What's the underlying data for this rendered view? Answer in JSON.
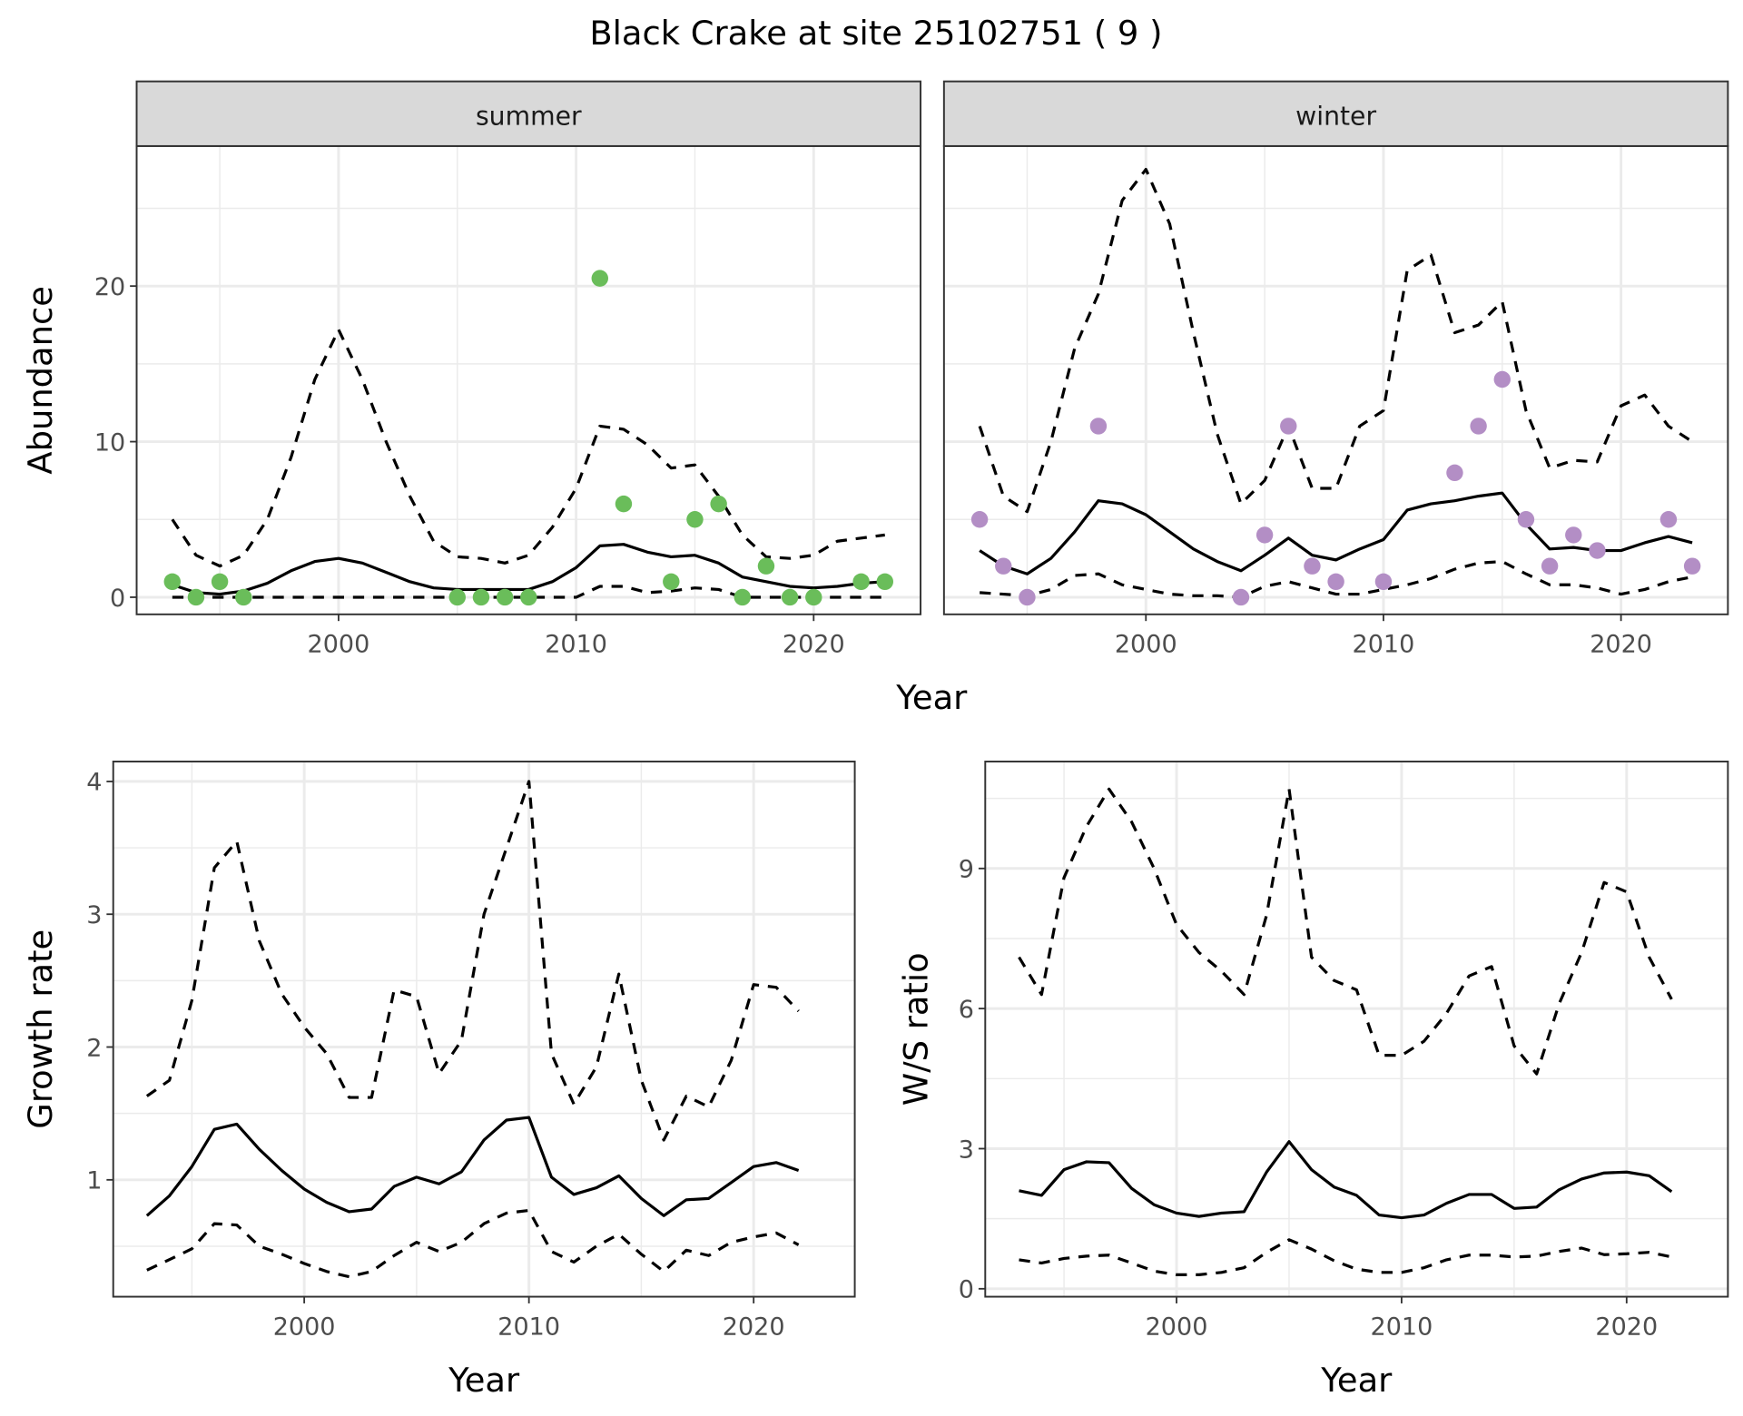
{
  "title": "Black Crake at site 25102751 ( 9 )",
  "colors": {
    "summer_points": "#6ABD5A",
    "winter_points": "#B38EC5",
    "lines": "#000000",
    "strip_bg": "#D9D9D9",
    "grid": "#EBEBEB"
  },
  "chart_data": [
    {
      "type": "line",
      "panel": "summer",
      "strip_label": "summer",
      "xlabel": "Year",
      "ylabel": "Abundance",
      "xlim": [
        1991.5,
        2024.5
      ],
      "ylim": [
        -1.1,
        29
      ],
      "x_ticks": [
        "2000",
        "2010",
        "2020"
      ],
      "y_ticks": [
        "0",
        "10",
        "20"
      ],
      "grid": true,
      "x": [
        1993,
        1994,
        1995,
        1996,
        1997,
        1998,
        1999,
        2000,
        2001,
        2002,
        2003,
        2004,
        2005,
        2006,
        2007,
        2008,
        2009,
        2010,
        2011,
        2012,
        2013,
        2014,
        2015,
        2016,
        2017,
        2018,
        2019,
        2020,
        2021,
        2022,
        2023
      ],
      "mean": [
        0.8,
        0.3,
        0.2,
        0.4,
        0.9,
        1.7,
        2.3,
        2.5,
        2.2,
        1.6,
        1.0,
        0.6,
        0.5,
        0.5,
        0.5,
        0.5,
        1.0,
        1.9,
        3.3,
        3.4,
        2.9,
        2.6,
        2.7,
        2.2,
        1.3,
        1.0,
        0.7,
        0.6,
        0.7,
        0.9,
        1.0
      ],
      "upper": [
        5.0,
        2.7,
        2.0,
        2.7,
        5.0,
        9.0,
        14.0,
        17.2,
        14.0,
        10.0,
        6.5,
        3.6,
        2.6,
        2.5,
        2.2,
        2.7,
        4.5,
        7.0,
        11.0,
        10.8,
        9.8,
        8.3,
        8.5,
        6.5,
        4.0,
        2.6,
        2.5,
        2.7,
        3.6,
        3.8,
        4.0
      ],
      "lower": [
        0,
        0,
        0,
        0,
        0,
        0,
        0,
        0,
        0,
        0,
        0,
        0,
        0,
        0,
        0,
        0,
        0,
        0,
        0.7,
        0.7,
        0.3,
        0.4,
        0.6,
        0.5,
        0,
        0,
        0,
        0,
        0,
        0,
        0
      ],
      "points": {
        "x": [
          1993,
          1994,
          1995,
          1996,
          2005,
          2006,
          2007,
          2008,
          2011,
          2012,
          2014,
          2015,
          2016,
          2017,
          2018,
          2019,
          2020,
          2022,
          2023
        ],
        "y": [
          1,
          0,
          1,
          0,
          0,
          0,
          0,
          0,
          20.5,
          6,
          1,
          5,
          6,
          0,
          2,
          0,
          0,
          1,
          1
        ]
      }
    },
    {
      "type": "line",
      "panel": "winter",
      "strip_label": "winter",
      "xlabel": "Year",
      "ylabel": "Abundance",
      "xlim": [
        1991.5,
        2024.5
      ],
      "ylim": [
        -1.1,
        29
      ],
      "x_ticks": [
        "2000",
        "2010",
        "2020"
      ],
      "grid": true,
      "x": [
        1993,
        1994,
        1995,
        1996,
        1997,
        1998,
        1999,
        2000,
        2001,
        2002,
        2003,
        2004,
        2005,
        2006,
        2007,
        2008,
        2009,
        2010,
        2011,
        2012,
        2013,
        2014,
        2015,
        2016,
        2017,
        2018,
        2019,
        2020,
        2021,
        2022,
        2023
      ],
      "mean": [
        3.0,
        2.0,
        1.5,
        2.5,
        4.2,
        6.2,
        6.0,
        5.3,
        4.2,
        3.1,
        2.3,
        1.7,
        2.7,
        3.8,
        2.7,
        2.4,
        3.1,
        3.7,
        5.6,
        6.0,
        6.2,
        6.5,
        6.7,
        4.7,
        3.1,
        3.2,
        3.0,
        3.0,
        3.5,
        3.9,
        3.5
      ],
      "upper": [
        11.0,
        6.5,
        5.5,
        10.0,
        16.0,
        19.5,
        25.5,
        27.5,
        24.0,
        17.0,
        10.5,
        6.0,
        7.5,
        11.0,
        7.0,
        7.0,
        11.0,
        12.0,
        21.0,
        22.0,
        17.0,
        17.5,
        19.0,
        12.0,
        8.3,
        8.8,
        8.7,
        12.3,
        13.0,
        11.0,
        10.0
      ],
      "lower": [
        0.3,
        0.2,
        0.1,
        0.5,
        1.4,
        1.5,
        0.8,
        0.5,
        0.2,
        0.1,
        0.1,
        0,
        0.7,
        1.0,
        0.6,
        0.2,
        0.2,
        0.5,
        0.8,
        1.2,
        1.8,
        2.2,
        2.3,
        1.5,
        0.8,
        0.8,
        0.6,
        0.2,
        0.5,
        1.0,
        1.3
      ],
      "points": {
        "x": [
          1993,
          1994,
          1995,
          1998,
          2004,
          2005,
          2006,
          2007,
          2008,
          2010,
          2013,
          2014,
          2015,
          2016,
          2017,
          2018,
          2019,
          2022,
          2023
        ],
        "y": [
          5,
          2,
          0,
          11,
          0,
          4,
          11,
          2,
          1,
          1,
          8,
          11,
          14,
          5,
          2,
          4,
          3,
          5,
          2
        ]
      }
    },
    {
      "type": "line",
      "panel": "growth",
      "xlabel": "Year",
      "ylabel": "Growth rate",
      "xlim": [
        1991.5,
        2024.5
      ],
      "ylim": [
        0.12,
        4.15
      ],
      "x_ticks": [
        "2000",
        "2010",
        "2020"
      ],
      "y_ticks": [
        "1",
        "2",
        "3",
        "4"
      ],
      "grid": true,
      "x": [
        1993,
        1994,
        1995,
        1996,
        1997,
        1998,
        1999,
        2000,
        2001,
        2002,
        2003,
        2004,
        2005,
        2006,
        2007,
        2008,
        2009,
        2010,
        2011,
        2012,
        2013,
        2014,
        2015,
        2016,
        2017,
        2018,
        2019,
        2020,
        2021,
        2022
      ],
      "mean": [
        0.73,
        0.88,
        1.1,
        1.38,
        1.42,
        1.23,
        1.07,
        0.93,
        0.83,
        0.76,
        0.78,
        0.95,
        1.02,
        0.97,
        1.06,
        1.3,
        1.45,
        1.47,
        1.02,
        0.89,
        0.94,
        1.03,
        0.86,
        0.73,
        0.85,
        0.86,
        0.98,
        1.1,
        1.13,
        1.07
      ],
      "upper": [
        1.63,
        1.75,
        2.35,
        3.35,
        3.55,
        2.8,
        2.4,
        2.15,
        1.95,
        1.62,
        1.62,
        2.43,
        2.38,
        1.8,
        2.05,
        3.0,
        3.5,
        4.0,
        1.95,
        1.57,
        1.85,
        2.55,
        1.75,
        1.3,
        1.63,
        1.55,
        1.9,
        2.47,
        2.45,
        2.27
      ],
      "lower": [
        0.32,
        0.4,
        0.48,
        0.67,
        0.66,
        0.5,
        0.44,
        0.37,
        0.31,
        0.27,
        0.31,
        0.43,
        0.53,
        0.46,
        0.53,
        0.67,
        0.75,
        0.77,
        0.46,
        0.38,
        0.5,
        0.59,
        0.44,
        0.31,
        0.47,
        0.43,
        0.53,
        0.57,
        0.6,
        0.51
      ]
    },
    {
      "type": "line",
      "panel": "ratio",
      "xlabel": "Year",
      "ylabel": "W/S ratio",
      "xlim": [
        1991.5,
        2024.5
      ],
      "ylim": [
        -0.17,
        11.29
      ],
      "x_ticks": [
        "2000",
        "2010",
        "2020"
      ],
      "y_ticks": [
        "0",
        "3",
        "6",
        "9"
      ],
      "grid": true,
      "x": [
        1993,
        1994,
        1995,
        1996,
        1997,
        1998,
        1999,
        2000,
        2001,
        2002,
        2003,
        2004,
        2005,
        2006,
        2007,
        2008,
        2009,
        2010,
        2011,
        2012,
        2013,
        2014,
        2015,
        2016,
        2017,
        2018,
        2019,
        2020,
        2021,
        2022
      ],
      "mean": [
        2.1,
        2.0,
        2.55,
        2.72,
        2.7,
        2.15,
        1.8,
        1.62,
        1.55,
        1.62,
        1.65,
        2.5,
        3.15,
        2.55,
        2.18,
        2.0,
        1.58,
        1.52,
        1.58,
        1.83,
        2.02,
        2.02,
        1.72,
        1.75,
        2.12,
        2.35,
        2.48,
        2.5,
        2.42,
        2.08
      ],
      "upper": [
        7.1,
        6.3,
        8.8,
        9.9,
        10.7,
        10.0,
        9.0,
        7.8,
        7.2,
        6.8,
        6.3,
        8.0,
        10.7,
        7.1,
        6.6,
        6.4,
        5.0,
        5.0,
        5.3,
        5.9,
        6.7,
        6.9,
        5.2,
        4.6,
        6.1,
        7.2,
        8.7,
        8.5,
        7.1,
        6.2
      ],
      "lower": [
        0.62,
        0.55,
        0.65,
        0.7,
        0.72,
        0.55,
        0.38,
        0.3,
        0.3,
        0.35,
        0.45,
        0.78,
        1.05,
        0.85,
        0.6,
        0.42,
        0.35,
        0.35,
        0.45,
        0.62,
        0.72,
        0.72,
        0.68,
        0.7,
        0.8,
        0.87,
        0.73,
        0.75,
        0.78,
        0.68
      ]
    }
  ]
}
